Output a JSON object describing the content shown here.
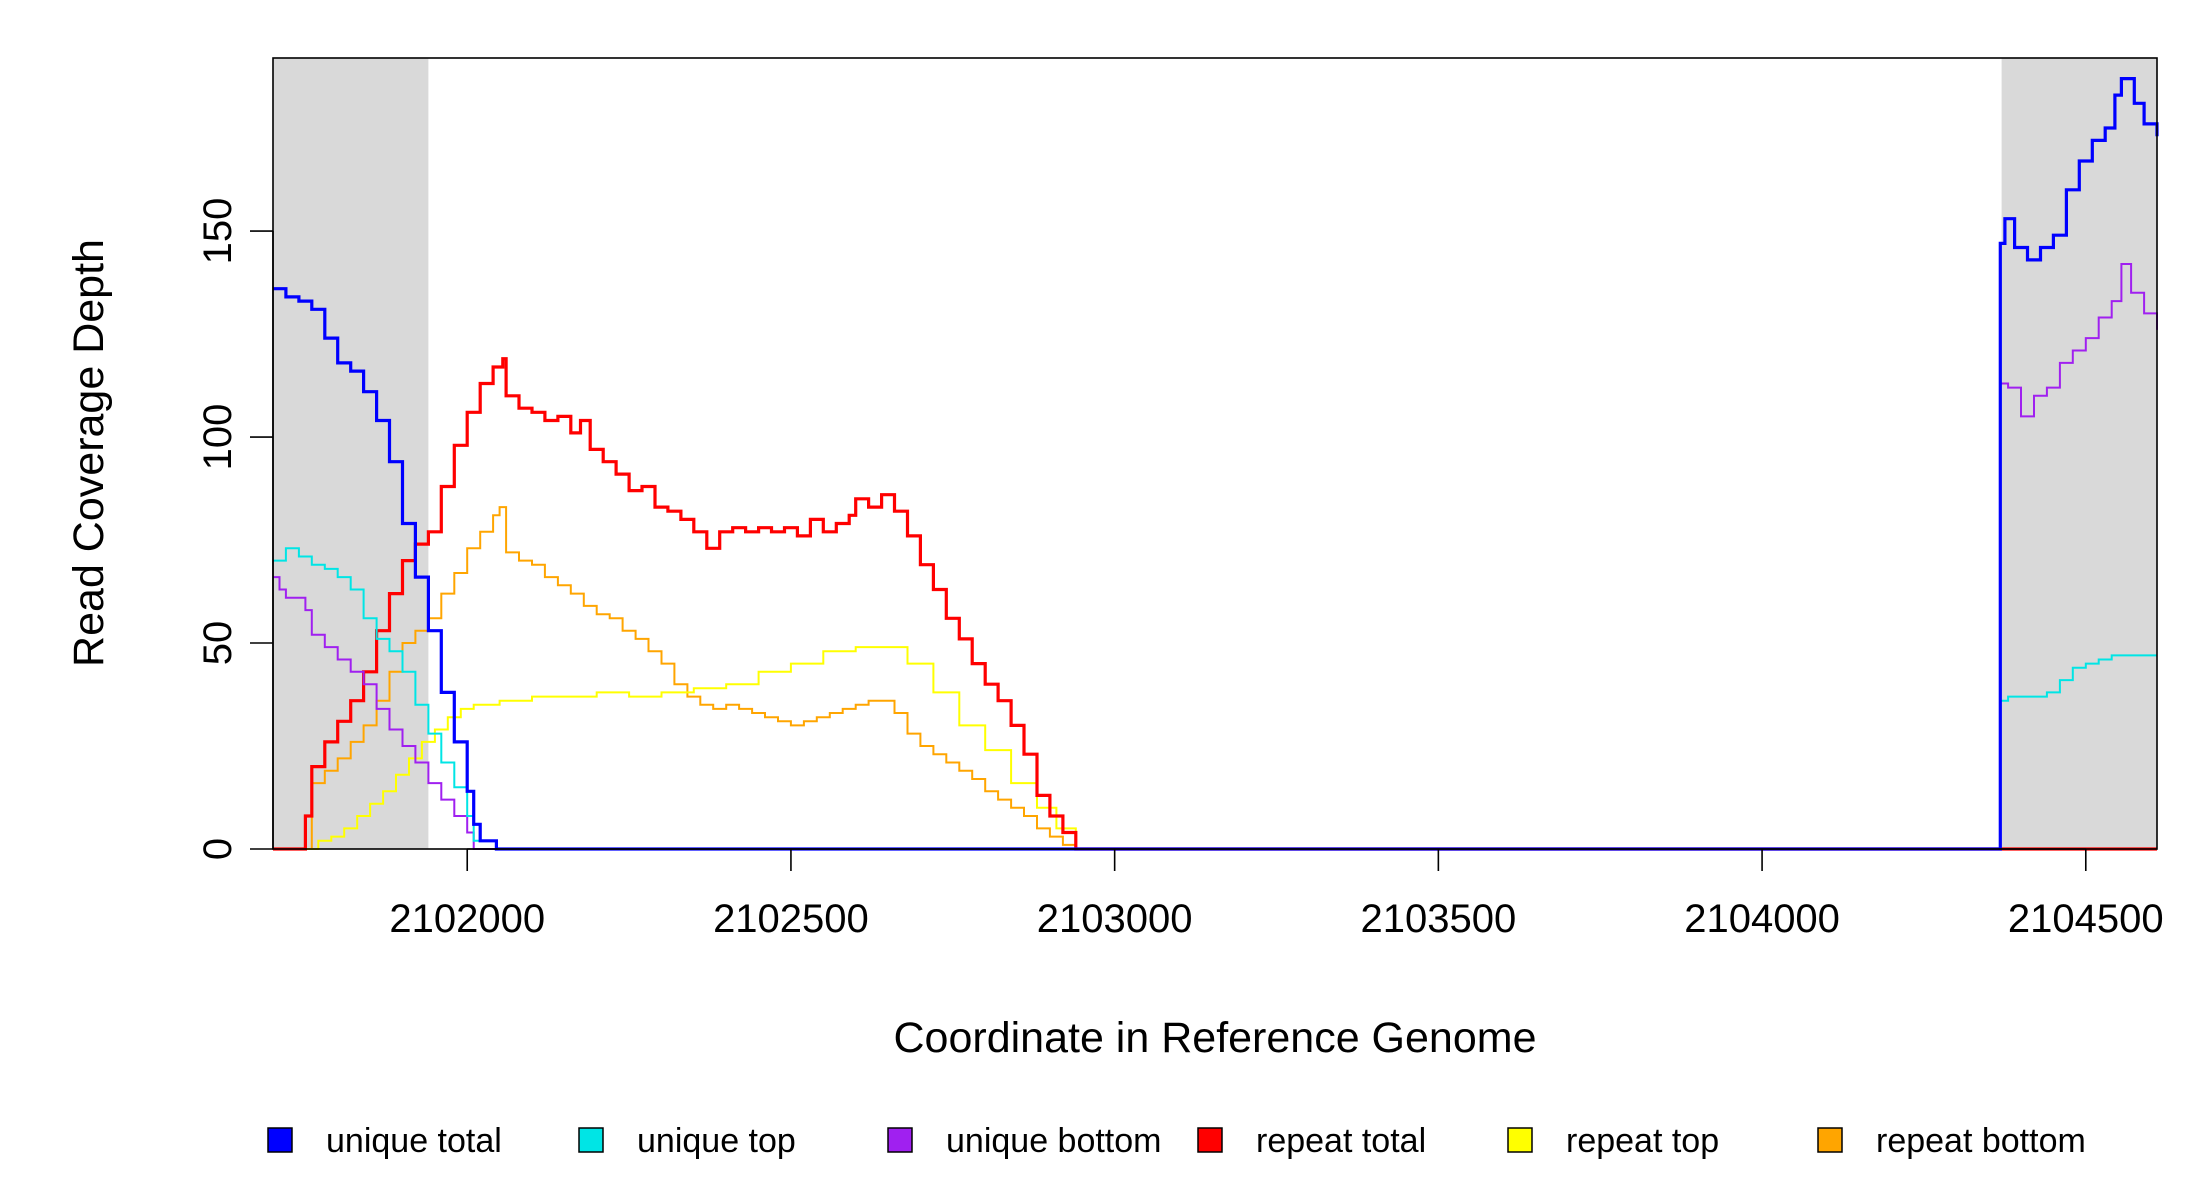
{
  "chart_data": {
    "type": "line",
    "xlabel": "Coordinate in Reference Genome",
    "ylabel": "Read Coverage Depth",
    "xlim": [
      2101700,
      2104610
    ],
    "ylim": [
      0,
      192
    ],
    "x_ticks": [
      2102000,
      2102500,
      2103000,
      2103500,
      2104000,
      2104500
    ],
    "y_ticks": [
      0,
      50,
      100,
      150
    ],
    "shaded_regions": [
      [
        2101700,
        2101940
      ],
      [
        2104370,
        2104610
      ]
    ],
    "legend_position": "bottom",
    "series": [
      {
        "name": "unique total",
        "color": "#0000ff",
        "width": 3.2,
        "points": [
          [
            2101700,
            136
          ],
          [
            2101720,
            134
          ],
          [
            2101740,
            133
          ],
          [
            2101760,
            131
          ],
          [
            2101780,
            124
          ],
          [
            2101800,
            118
          ],
          [
            2101820,
            116
          ],
          [
            2101840,
            111
          ],
          [
            2101860,
            104
          ],
          [
            2101880,
            94
          ],
          [
            2101900,
            79
          ],
          [
            2101920,
            66
          ],
          [
            2101940,
            53
          ],
          [
            2101960,
            38
          ],
          [
            2101980,
            26
          ],
          [
            2102000,
            14
          ],
          [
            2102010,
            6
          ],
          [
            2102020,
            2
          ],
          [
            2102040,
            2
          ],
          [
            2102045,
            0
          ],
          [
            2104365,
            0
          ],
          [
            2104368,
            147
          ],
          [
            2104375,
            153
          ],
          [
            2104390,
            146
          ],
          [
            2104410,
            143
          ],
          [
            2104430,
            146
          ],
          [
            2104450,
            149
          ],
          [
            2104470,
            160
          ],
          [
            2104490,
            167
          ],
          [
            2104510,
            172
          ],
          [
            2104530,
            175
          ],
          [
            2104545,
            183
          ],
          [
            2104555,
            187
          ],
          [
            2104575,
            181
          ],
          [
            2104590,
            176
          ],
          [
            2104610,
            173
          ]
        ]
      },
      {
        "name": "unique top",
        "color": "#00e5e5",
        "width": 2,
        "points": [
          [
            2101700,
            70
          ],
          [
            2101720,
            73
          ],
          [
            2101740,
            71
          ],
          [
            2101760,
            69
          ],
          [
            2101780,
            68
          ],
          [
            2101800,
            66
          ],
          [
            2101820,
            63
          ],
          [
            2101840,
            56
          ],
          [
            2101860,
            51
          ],
          [
            2101880,
            48
          ],
          [
            2101900,
            43
          ],
          [
            2101920,
            35
          ],
          [
            2101940,
            28
          ],
          [
            2101960,
            21
          ],
          [
            2101980,
            15
          ],
          [
            2102000,
            8
          ],
          [
            2102010,
            2
          ],
          [
            2102020,
            2
          ],
          [
            2102040,
            2
          ],
          [
            2102045,
            0
          ],
          [
            2104365,
            0
          ],
          [
            2104368,
            36
          ],
          [
            2104380,
            37
          ],
          [
            2104400,
            37
          ],
          [
            2104420,
            37
          ],
          [
            2104440,
            38
          ],
          [
            2104460,
            41
          ],
          [
            2104480,
            44
          ],
          [
            2104500,
            45
          ],
          [
            2104520,
            46
          ],
          [
            2104540,
            47
          ],
          [
            2104560,
            47
          ],
          [
            2104580,
            47
          ],
          [
            2104610,
            47
          ]
        ]
      },
      {
        "name": "unique bottom",
        "color": "#a020f0",
        "width": 2,
        "points": [
          [
            2101700,
            66
          ],
          [
            2101710,
            63
          ],
          [
            2101720,
            61
          ],
          [
            2101750,
            58
          ],
          [
            2101760,
            52
          ],
          [
            2101780,
            49
          ],
          [
            2101800,
            46
          ],
          [
            2101820,
            43
          ],
          [
            2101840,
            40
          ],
          [
            2101860,
            34
          ],
          [
            2101880,
            29
          ],
          [
            2101900,
            25
          ],
          [
            2101920,
            21
          ],
          [
            2101940,
            16
          ],
          [
            2101960,
            12
          ],
          [
            2101980,
            8
          ],
          [
            2102000,
            4
          ],
          [
            2102010,
            0
          ],
          [
            2104365,
            0
          ],
          [
            2104368,
            113
          ],
          [
            2104380,
            112
          ],
          [
            2104400,
            105
          ],
          [
            2104420,
            110
          ],
          [
            2104440,
            112
          ],
          [
            2104460,
            118
          ],
          [
            2104480,
            121
          ],
          [
            2104500,
            124
          ],
          [
            2104520,
            129
          ],
          [
            2104540,
            133
          ],
          [
            2104555,
            142
          ],
          [
            2104570,
            135
          ],
          [
            2104590,
            130
          ],
          [
            2104610,
            126
          ]
        ]
      },
      {
        "name": "repeat total",
        "color": "#ff0000",
        "width": 3.2,
        "points": [
          [
            2101700,
            0
          ],
          [
            2101740,
            0
          ],
          [
            2101750,
            8
          ],
          [
            2101760,
            20
          ],
          [
            2101780,
            26
          ],
          [
            2101800,
            31
          ],
          [
            2101820,
            36
          ],
          [
            2101840,
            43
          ],
          [
            2101860,
            53
          ],
          [
            2101880,
            62
          ],
          [
            2101900,
            70
          ],
          [
            2101920,
            74
          ],
          [
            2101940,
            77
          ],
          [
            2101960,
            88
          ],
          [
            2101980,
            98
          ],
          [
            2102000,
            106
          ],
          [
            2102020,
            113
          ],
          [
            2102040,
            117
          ],
          [
            2102055,
            119
          ],
          [
            2102060,
            110
          ],
          [
            2102080,
            107
          ],
          [
            2102100,
            106
          ],
          [
            2102120,
            104
          ],
          [
            2102140,
            105
          ],
          [
            2102160,
            101
          ],
          [
            2102175,
            104
          ],
          [
            2102190,
            97
          ],
          [
            2102210,
            94
          ],
          [
            2102230,
            91
          ],
          [
            2102250,
            87
          ],
          [
            2102270,
            88
          ],
          [
            2102290,
            83
          ],
          [
            2102310,
            82
          ],
          [
            2102330,
            80
          ],
          [
            2102350,
            77
          ],
          [
            2102370,
            73
          ],
          [
            2102390,
            77
          ],
          [
            2102410,
            78
          ],
          [
            2102430,
            77
          ],
          [
            2102450,
            78
          ],
          [
            2102470,
            77
          ],
          [
            2102490,
            78
          ],
          [
            2102510,
            76
          ],
          [
            2102530,
            80
          ],
          [
            2102550,
            77
          ],
          [
            2102570,
            79
          ],
          [
            2102590,
            81
          ],
          [
            2102600,
            85
          ],
          [
            2102620,
            83
          ],
          [
            2102640,
            86
          ],
          [
            2102660,
            82
          ],
          [
            2102680,
            76
          ],
          [
            2102700,
            69
          ],
          [
            2102720,
            63
          ],
          [
            2102740,
            56
          ],
          [
            2102760,
            51
          ],
          [
            2102780,
            45
          ],
          [
            2102800,
            40
          ],
          [
            2102820,
            36
          ],
          [
            2102840,
            30
          ],
          [
            2102860,
            23
          ],
          [
            2102880,
            13
          ],
          [
            2102900,
            8
          ],
          [
            2102920,
            4
          ],
          [
            2102940,
            0
          ],
          [
            2104610,
            0
          ]
        ]
      },
      {
        "name": "repeat top",
        "color": "#ffff00",
        "width": 2,
        "points": [
          [
            2101700,
            0
          ],
          [
            2101760,
            0
          ],
          [
            2101770,
            2
          ],
          [
            2101790,
            3
          ],
          [
            2101810,
            5
          ],
          [
            2101830,
            8
          ],
          [
            2101850,
            11
          ],
          [
            2101870,
            14
          ],
          [
            2101890,
            18
          ],
          [
            2101910,
            22
          ],
          [
            2101930,
            26
          ],
          [
            2101950,
            29
          ],
          [
            2101970,
            32
          ],
          [
            2101990,
            34
          ],
          [
            2102010,
            35
          ],
          [
            2102050,
            36
          ],
          [
            2102100,
            37
          ],
          [
            2102150,
            37
          ],
          [
            2102200,
            38
          ],
          [
            2102250,
            37
          ],
          [
            2102300,
            38
          ],
          [
            2102350,
            39
          ],
          [
            2102400,
            40
          ],
          [
            2102450,
            43
          ],
          [
            2102500,
            45
          ],
          [
            2102550,
            48
          ],
          [
            2102600,
            49
          ],
          [
            2102640,
            49
          ],
          [
            2102680,
            45
          ],
          [
            2102720,
            38
          ],
          [
            2102760,
            30
          ],
          [
            2102800,
            24
          ],
          [
            2102840,
            16
          ],
          [
            2102880,
            10
          ],
          [
            2102910,
            5
          ],
          [
            2102940,
            0
          ],
          [
            2104610,
            0
          ]
        ]
      },
      {
        "name": "repeat bottom",
        "color": "#ffa500",
        "width": 2,
        "points": [
          [
            2101700,
            0
          ],
          [
            2101750,
            0
          ],
          [
            2101760,
            16
          ],
          [
            2101780,
            19
          ],
          [
            2101800,
            22
          ],
          [
            2101820,
            26
          ],
          [
            2101840,
            30
          ],
          [
            2101860,
            36
          ],
          [
            2101880,
            43
          ],
          [
            2101900,
            50
          ],
          [
            2101920,
            53
          ],
          [
            2101940,
            56
          ],
          [
            2101960,
            62
          ],
          [
            2101980,
            67
          ],
          [
            2102000,
            73
          ],
          [
            2102020,
            77
          ],
          [
            2102040,
            81
          ],
          [
            2102050,
            83
          ],
          [
            2102060,
            72
          ],
          [
            2102080,
            70
          ],
          [
            2102100,
            69
          ],
          [
            2102120,
            66
          ],
          [
            2102140,
            64
          ],
          [
            2102160,
            62
          ],
          [
            2102180,
            59
          ],
          [
            2102200,
            57
          ],
          [
            2102220,
            56
          ],
          [
            2102240,
            53
          ],
          [
            2102260,
            51
          ],
          [
            2102280,
            48
          ],
          [
            2102300,
            45
          ],
          [
            2102320,
            40
          ],
          [
            2102340,
            37
          ],
          [
            2102360,
            35
          ],
          [
            2102380,
            34
          ],
          [
            2102400,
            35
          ],
          [
            2102420,
            34
          ],
          [
            2102440,
            33
          ],
          [
            2102460,
            32
          ],
          [
            2102480,
            31
          ],
          [
            2102500,
            30
          ],
          [
            2102520,
            31
          ],
          [
            2102540,
            32
          ],
          [
            2102560,
            33
          ],
          [
            2102580,
            34
          ],
          [
            2102600,
            35
          ],
          [
            2102620,
            36
          ],
          [
            2102640,
            36
          ],
          [
            2102660,
            33
          ],
          [
            2102680,
            28
          ],
          [
            2102700,
            25
          ],
          [
            2102720,
            23
          ],
          [
            2102740,
            21
          ],
          [
            2102760,
            19
          ],
          [
            2102780,
            17
          ],
          [
            2102800,
            14
          ],
          [
            2102820,
            12
          ],
          [
            2102840,
            10
          ],
          [
            2102860,
            8
          ],
          [
            2102880,
            5
          ],
          [
            2102900,
            3
          ],
          [
            2102920,
            1
          ],
          [
            2102940,
            0
          ],
          [
            2104610,
            0
          ]
        ]
      }
    ]
  }
}
